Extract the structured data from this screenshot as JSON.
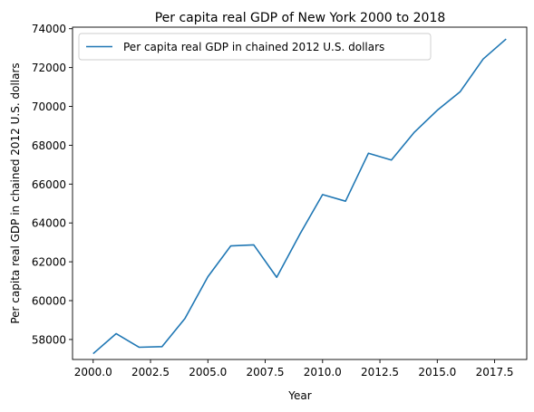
{
  "chart_data": {
    "type": "line",
    "title": "Per capita real GDP of New York 2000 to 2018",
    "xlabel": "Year",
    "ylabel": "Per capita real GDP in chained 2012 U.S. dollars",
    "xlim": [
      1999.1,
      2018.9
    ],
    "ylim": [
      56970,
      74080
    ],
    "x_ticks": [
      2000.0,
      2002.5,
      2005.0,
      2007.5,
      2010.0,
      2012.5,
      2015.0,
      2017.5
    ],
    "x_tick_labels": [
      "2000.0",
      "2002.5",
      "2005.0",
      "2007.5",
      "2010.0",
      "2012.5",
      "2015.0",
      "2017.5"
    ],
    "y_ticks": [
      58000,
      60000,
      62000,
      64000,
      66000,
      68000,
      70000,
      72000,
      74000
    ],
    "y_tick_labels": [
      "58000",
      "60000",
      "62000",
      "64000",
      "66000",
      "68000",
      "70000",
      "72000",
      "74000"
    ],
    "grid": false,
    "legend": "upper-left",
    "series": [
      {
        "name": "Per capita real GDP in chained 2012 U.S. dollars",
        "color": "#1f77b4",
        "x": [
          2000,
          2001,
          2002,
          2003,
          2004,
          2005,
          2006,
          2007,
          2008,
          2009,
          2010,
          2011,
          2012,
          2013,
          2014,
          2015,
          2016,
          2017,
          2018
        ],
        "values": [
          57270,
          58300,
          57600,
          57630,
          59080,
          61230,
          62820,
          62870,
          61200,
          63400,
          65460,
          65120,
          67590,
          67240,
          68670,
          69800,
          70760,
          72440,
          73470
        ]
      }
    ]
  }
}
